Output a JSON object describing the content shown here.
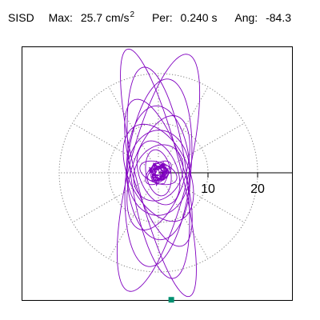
{
  "header": {
    "station": "SISD",
    "max_label": "Max:",
    "max_value": "25.7 cm/s",
    "max_unit_exp": "2",
    "per_label": "Per:",
    "per_value": "0.240 s",
    "ang_label": "Ang:",
    "ang_value": "-84.3"
  },
  "chart_data": {
    "type": "scatter",
    "subtype": "polar particle-motion hodogram",
    "title": "",
    "xlabel": "",
    "ylabel": "",
    "max_amplitude": 25.7,
    "units": "cm/s^2",
    "period_s": 0.24,
    "angle_deg": -84.3,
    "radial_ticks": [
      10,
      20
    ],
    "radial_tick_labels": [
      "10",
      "20"
    ],
    "rlim": [
      0,
      25.7
    ],
    "grid": true,
    "grid_circles": [
      10,
      20
    ],
    "spoke_angles_deg": [
      0,
      30,
      60,
      90,
      120,
      150,
      180,
      210,
      240,
      270,
      300,
      330
    ],
    "trace_color": "#8000c0",
    "marker_color": "#009070",
    "peak_point": {
      "x": 2.6,
      "y": -25.6
    },
    "ellipses": [
      {
        "a": 25.7,
        "b": 4.6,
        "rotation_deg": -76
      },
      {
        "a": 24.6,
        "b": 6.0,
        "rotation_deg": -104
      },
      {
        "a": 21.5,
        "b": 5.6,
        "rotation_deg": -82
      },
      {
        "a": 19.0,
        "b": 6.5,
        "rotation_deg": -96
      },
      {
        "a": 15.5,
        "b": 5.1,
        "rotation_deg": -72
      },
      {
        "a": 13.5,
        "b": 6.4,
        "rotation_deg": -88
      },
      {
        "a": 12.0,
        "b": 5.4,
        "rotation_deg": -108
      },
      {
        "a": 10.5,
        "b": 6.0,
        "rotation_deg": -64
      },
      {
        "a": 8.6,
        "b": 6.3,
        "rotation_deg": -92
      },
      {
        "a": 6.7,
        "b": 3.9,
        "rotation_deg": -70
      },
      {
        "a": 5.9,
        "b": 4.7,
        "rotation_deg": -118
      },
      {
        "a": 4.7,
        "b": 2.5,
        "rotation_deg": -80
      },
      {
        "a": 3.9,
        "b": 2.1,
        "rotation_deg": -20
      },
      {
        "a": 3.1,
        "b": 1.7,
        "rotation_deg": -140
      },
      {
        "a": 2.4,
        "b": 1.2,
        "rotation_deg": 30
      },
      {
        "a": 1.8,
        "b": 0.9,
        "rotation_deg": -50
      }
    ]
  }
}
